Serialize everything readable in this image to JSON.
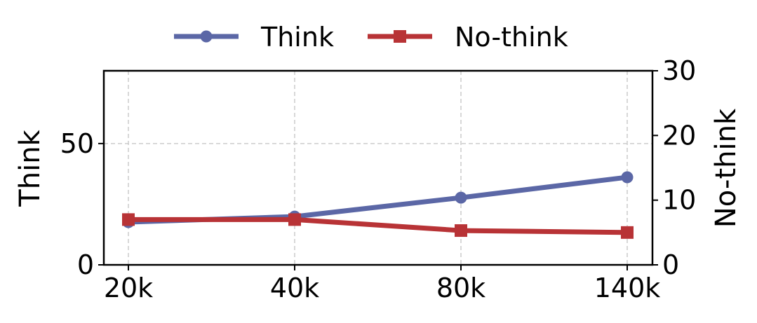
{
  "chart_data": {
    "type": "line",
    "categories": [
      "20k",
      "40k",
      "80k",
      "140k"
    ],
    "series": [
      {
        "name": "Think",
        "axis": "left",
        "values": [
          17.6,
          19.9,
          27.7,
          36.1
        ],
        "color": "#5b67a6",
        "marker": "circle"
      },
      {
        "name": "No-think",
        "axis": "right",
        "values": [
          7.0,
          7.0,
          5.3,
          5.0
        ],
        "color": "#b83336",
        "marker": "square"
      }
    ],
    "ylabel_left": "Think",
    "ylabel_right": "No-think",
    "ylim_left": [
      0,
      80
    ],
    "ylim_right": [
      0,
      30
    ],
    "yticks_left": [
      "0",
      "50"
    ],
    "yticks_right": [
      "0",
      "10",
      "20",
      "30"
    ],
    "grid": true,
    "legend_placement": "top-center"
  }
}
